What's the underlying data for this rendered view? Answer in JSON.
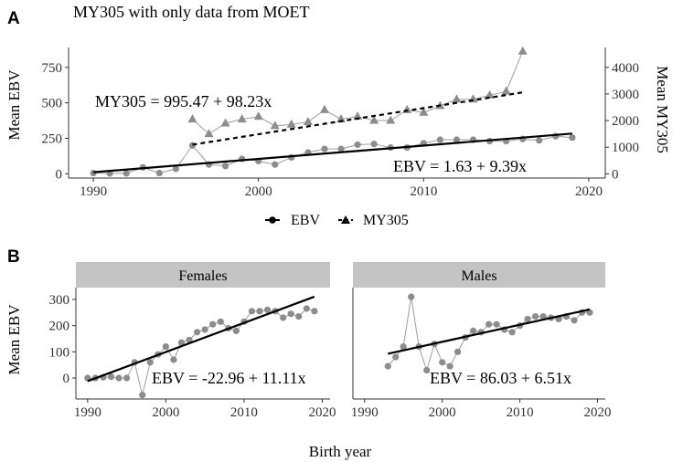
{
  "figure": {
    "panel_a_label": "A",
    "panel_b_label": "B",
    "x_axis_title": "Birth year"
  },
  "chart_data": [
    {
      "type": "line",
      "panel": "A",
      "title": "MY305 with only data from MOET",
      "xlabel": "",
      "ylabel": "Mean EBV",
      "y2label": "Mean MY305",
      "xlim": [
        1988.5,
        2021
      ],
      "ylim": [
        -30,
        890
      ],
      "y2lim": [
        -160,
        4747
      ],
      "x_ticks": [
        1990,
        2000,
        2010,
        2020
      ],
      "y_ticks": [
        0,
        250,
        500,
        750
      ],
      "y2_ticks": [
        0,
        1000,
        2000,
        3000,
        4000
      ],
      "legend": {
        "position": "bottom",
        "entries": [
          "EBV",
          "MY305"
        ]
      },
      "colors": {
        "points": "#8c8c8c",
        "connector": "#9e9e9e",
        "fit": "#000000"
      },
      "series": [
        {
          "name": "EBV",
          "marker": "circle",
          "axis": "left",
          "x": [
            1990,
            1991,
            1992,
            1993,
            1994,
            1995,
            1996,
            1997,
            1998,
            1999,
            2000,
            2001,
            2002,
            2003,
            2004,
            2005,
            2006,
            2007,
            2008,
            2009,
            2010,
            2011,
            2012,
            2013,
            2014,
            2015,
            2016,
            2017,
            2018,
            2019
          ],
          "values": [
            5,
            3,
            3,
            45,
            5,
            35,
            200,
            65,
            55,
            105,
            90,
            65,
            115,
            150,
            175,
            175,
            205,
            210,
            185,
            185,
            215,
            240,
            240,
            240,
            230,
            230,
            245,
            235,
            265,
            255
          ],
          "fit": {
            "intercept": 1.63,
            "slope": 9.39,
            "x_from": 1990,
            "x_to": 2019,
            "style": "solid"
          },
          "equation": "EBV = 1.63 + 9.39x"
        },
        {
          "name": "MY305",
          "marker": "triangle",
          "axis": "right",
          "x": [
            1996,
            1997,
            1998,
            1999,
            2000,
            2001,
            2002,
            2003,
            2004,
            2005,
            2006,
            2007,
            2008,
            2009,
            2010,
            2011,
            2012,
            2013,
            2014,
            2015,
            2016
          ],
          "values": [
            2050,
            1500,
            1900,
            2050,
            2150,
            1800,
            1850,
            1950,
            2400,
            2050,
            2150,
            2000,
            2000,
            2400,
            2300,
            2550,
            2800,
            2800,
            2950,
            3100,
            4600
          ],
          "fit": {
            "intercept": 995.47,
            "slope": 98.23,
            "x_from": 1996,
            "x_to": 2016,
            "style": "dashed"
          },
          "equation": "MY305 = 995.47 + 98.23x"
        }
      ]
    },
    {
      "type": "line",
      "panel": "B",
      "facet": "Females",
      "xlabel": "Birth year",
      "ylabel": "Mean EBV",
      "xlim": [
        1988.5,
        2021
      ],
      "ylim": [
        -80,
        345
      ],
      "x_ticks": [
        1990,
        2000,
        2010,
        2020
      ],
      "y_ticks": [
        0,
        100,
        200,
        300
      ],
      "x": [
        1990,
        1991,
        1992,
        1993,
        1994,
        1995,
        1996,
        1997,
        1998,
        1999,
        2000,
        2001,
        2002,
        2003,
        2004,
        2005,
        2006,
        2007,
        2008,
        2009,
        2010,
        2011,
        2012,
        2013,
        2014,
        2015,
        2016,
        2017,
        2018,
        2019
      ],
      "values": [
        0,
        0,
        3,
        5,
        0,
        0,
        60,
        -65,
        60,
        90,
        120,
        70,
        135,
        145,
        175,
        185,
        205,
        215,
        190,
        180,
        215,
        255,
        255,
        260,
        255,
        230,
        245,
        235,
        265,
        255
      ],
      "fit": {
        "intercept": -22.96,
        "slope": 11.11,
        "x_from": 1990,
        "x_to": 2019
      },
      "equation": "EBV = -22.96 + 11.11x"
    },
    {
      "type": "line",
      "panel": "B",
      "facet": "Males",
      "xlabel": "Birth year",
      "ylabel": "Mean EBV",
      "xlim": [
        1988.5,
        2021
      ],
      "ylim": [
        -80,
        345
      ],
      "x_ticks": [
        1990,
        2000,
        2010,
        2020
      ],
      "y_ticks": [
        0,
        100,
        200,
        300
      ],
      "x": [
        1993,
        1994,
        1995,
        1996,
        1997,
        1998,
        1999,
        2000,
        2001,
        2002,
        2003,
        2004,
        2005,
        2006,
        2007,
        2008,
        2009,
        2010,
        2011,
        2012,
        2013,
        2014,
        2015,
        2016,
        2017,
        2018,
        2019
      ],
      "values": [
        45,
        80,
        120,
        310,
        120,
        30,
        130,
        60,
        45,
        100,
        155,
        180,
        175,
        205,
        205,
        185,
        175,
        200,
        225,
        235,
        235,
        230,
        225,
        235,
        220,
        250,
        250
      ],
      "fit": {
        "intercept": 86.03,
        "slope": 6.51,
        "x_from": 1993,
        "x_to": 2019
      },
      "equation": "EBV = 86.03 + 6.51x"
    }
  ]
}
